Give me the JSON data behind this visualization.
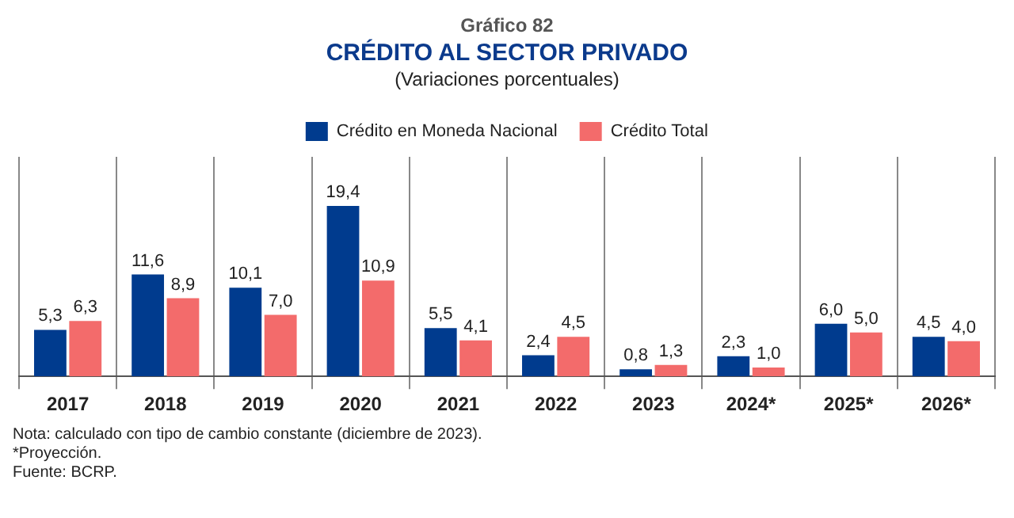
{
  "chart_data": {
    "type": "bar",
    "title": "CRÉDITO AL SECTOR PRIVADO",
    "subtitle": "(Variaciones porcentuales)",
    "annotations": [
      "Gráfico 82",
      "Nota: calculado con tipo de cambio constante (diciembre de 2023).",
      "*Proyección.",
      "Fuente: BCRP."
    ],
    "categories": [
      "2017",
      "2018",
      "2019",
      "2020",
      "2021",
      "2022",
      "2023",
      "2024*",
      "2025*",
      "2026*"
    ],
    "series": [
      {
        "name": "Crédito en Moneda Nacional",
        "color": "#003b8e",
        "values": [
          5.3,
          11.6,
          10.1,
          19.4,
          5.5,
          2.4,
          0.8,
          2.3,
          6.0,
          4.5
        ],
        "value_labels": [
          "5,3",
          "11,6",
          "10,1",
          "19,4",
          "5,5",
          "2,4",
          "0,8",
          "2,3",
          "6,0",
          "4,5"
        ]
      },
      {
        "name": "Crédito Total",
        "color": "#f36b6b",
        "values": [
          6.3,
          8.9,
          7.0,
          10.9,
          4.1,
          4.5,
          1.3,
          1.0,
          5.0,
          4.0
        ],
        "value_labels": [
          "6,3",
          "8,9",
          "7,0",
          "10,9",
          "4,1",
          "4,5",
          "1,3",
          "1,0",
          "5,0",
          "4,0"
        ]
      }
    ],
    "grid": "x",
    "legend": "top"
  }
}
